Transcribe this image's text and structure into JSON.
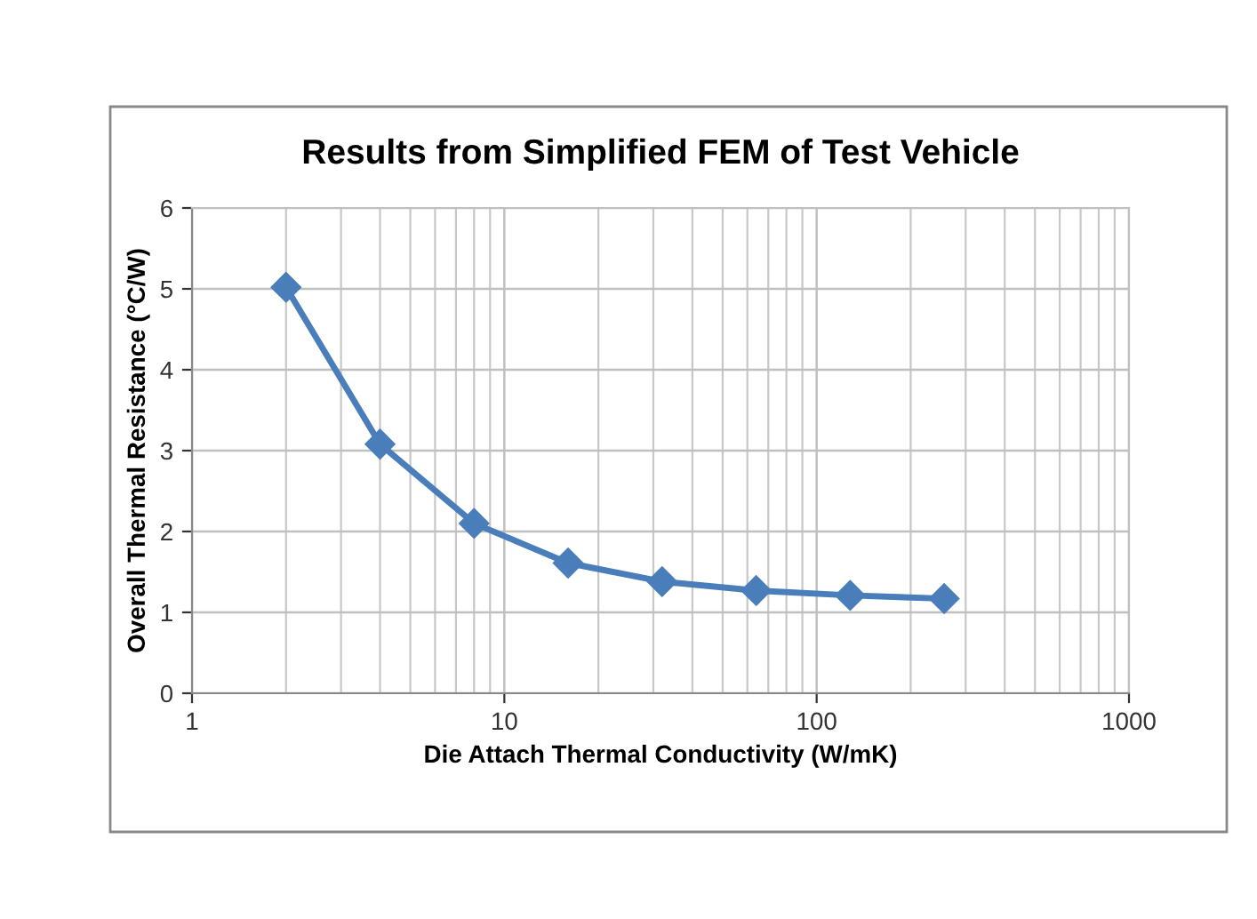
{
  "chart_data": {
    "type": "line",
    "title": "Results from Simplified FEM of Test Vehicle",
    "xlabel": "Die Attach Thermal Conductivity (W/mK)",
    "ylabel": "Overall Thermal Resistance (°C/W)",
    "x": [
      2,
      4,
      8,
      16,
      32,
      64,
      128,
      256
    ],
    "series": [
      {
        "color": "#4a7ebb",
        "values": [
          5.02,
          3.08,
          2.1,
          1.61,
          1.38,
          1.27,
          1.21,
          1.17
        ]
      }
    ],
    "log": "x",
    "xlim": [
      1,
      1000
    ],
    "xticks": [
      1,
      10,
      100,
      1000
    ],
    "ylim": [
      0,
      6
    ],
    "yticks": [
      0,
      1,
      2,
      3,
      4,
      5,
      6
    ],
    "grid": true,
    "marker": "diamond",
    "line_style": "solid",
    "legend": false
  }
}
